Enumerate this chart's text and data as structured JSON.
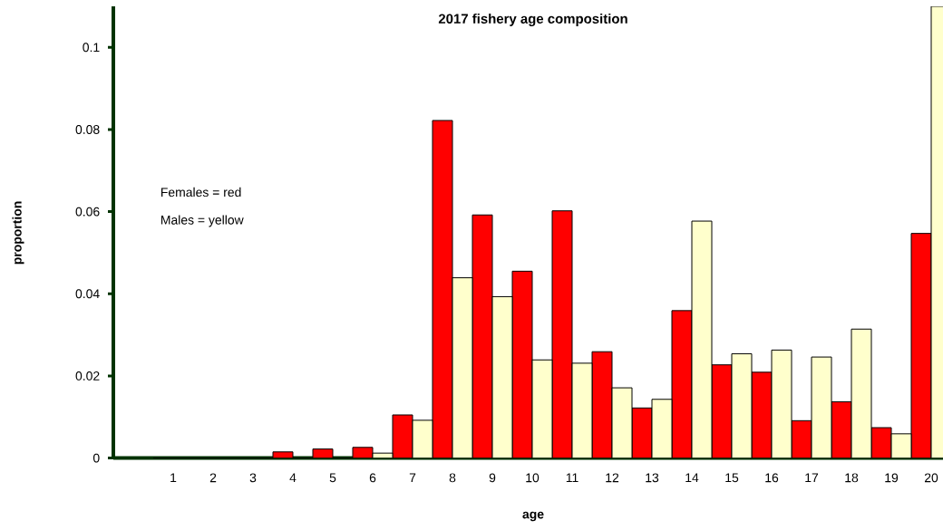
{
  "chart_data": {
    "type": "bar",
    "title": "2017 fishery age composition",
    "xlabel": "age",
    "ylabel": "proportion",
    "annotations": [
      "Females = red",
      "Males = yellow"
    ],
    "categories": [
      "1",
      "2",
      "3",
      "4",
      "5",
      "6",
      "7",
      "8",
      "9",
      "10",
      "11",
      "12",
      "13",
      "14",
      "15",
      "16",
      "17",
      "18",
      "19",
      "20"
    ],
    "series": [
      {
        "color": "#ff0000",
        "values": [
          0,
          0,
          0,
          0.0015,
          0.0022,
          0.0026,
          0.0105,
          0.0822,
          0.0592,
          0.0455,
          0.0602,
          0.0259,
          0.0122,
          0.0359,
          0.0227,
          0.0209,
          0.0091,
          0.0137,
          0.0074,
          0.0547
        ]
      },
      {
        "color": "#ffffcc",
        "values": [
          0,
          0,
          0,
          0,
          0,
          0.0012,
          0.0092,
          0.0439,
          0.0393,
          0.0239,
          0.0231,
          0.0171,
          0.0143,
          0.0577,
          0.0254,
          0.0263,
          0.0246,
          0.0314,
          0.0059,
          0.11
        ]
      }
    ],
    "ylim": [
      0,
      0.11
    ],
    "yticks": [
      0,
      0.02,
      0.04,
      0.06,
      0.08,
      0.1
    ]
  }
}
